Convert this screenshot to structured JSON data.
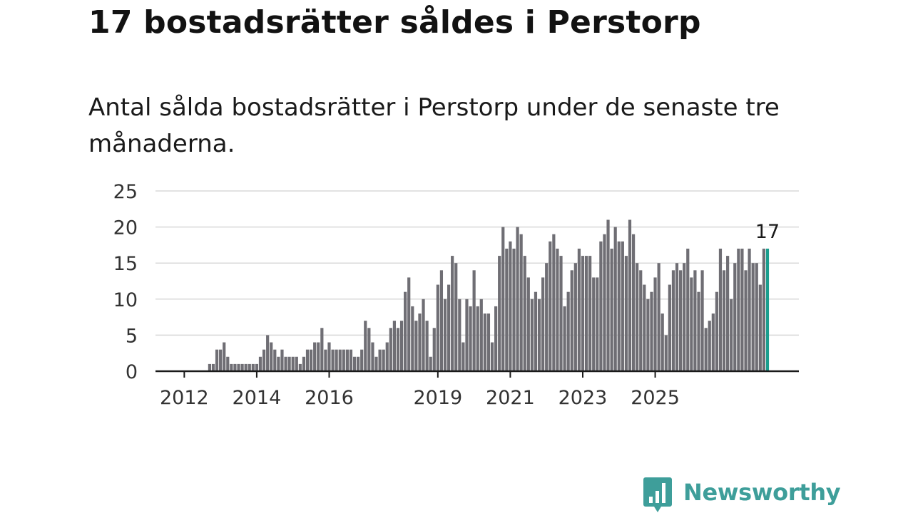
{
  "title": "17 bostadsrätter såldes i Perstorp",
  "subtitle": "Antal sålda bostadsrätter i Perstorp under de senaste tre månaderna.",
  "brand": {
    "name": "Newsworthy",
    "color": "#3e9e9a"
  },
  "colors": {
    "bar": "#6f6e74",
    "highlight": "#1b9e8e",
    "grid": "#d9d9d9",
    "axis": "#1a1a1a"
  },
  "chart_data": {
    "type": "bar",
    "title": "17 bostadsrätter såldes i Perstorp",
    "subtitle": "Antal sålda bostadsrätter i Perstorp under de senaste tre månaderna.",
    "xlabel": "",
    "ylabel": "",
    "ylim": [
      0,
      25
    ],
    "y_ticks": [
      0,
      5,
      10,
      15,
      20,
      25
    ],
    "x_ticks": [
      {
        "label": "2012",
        "index": 7
      },
      {
        "label": "2014",
        "index": 27
      },
      {
        "label": "2016",
        "index": 47
      },
      {
        "label": "2019",
        "index": 77
      },
      {
        "label": "2021",
        "index": 97
      },
      {
        "label": "2023",
        "index": 117
      },
      {
        "label": "2025",
        "index": 137
      }
    ],
    "grid": true,
    "start_period": "2011-06",
    "frequency": "monthly",
    "values": [
      0,
      0,
      0,
      0,
      0,
      0,
      0,
      0,
      0,
      0,
      0,
      0,
      0,
      0,
      1,
      1,
      3,
      3,
      4,
      2,
      1,
      1,
      1,
      1,
      1,
      1,
      1,
      1,
      2,
      3,
      5,
      4,
      3,
      2,
      3,
      2,
      2,
      2,
      2,
      1,
      2,
      3,
      3,
      4,
      4,
      6,
      3,
      4,
      3,
      3,
      3,
      3,
      3,
      3,
      2,
      2,
      3,
      7,
      6,
      4,
      2,
      3,
      3,
      4,
      6,
      7,
      6,
      7,
      11,
      13,
      9,
      7,
      8,
      10,
      7,
      2,
      6,
      12,
      14,
      10,
      12,
      16,
      15,
      10,
      4,
      10,
      9,
      14,
      9,
      10,
      8,
      8,
      4,
      9,
      16,
      20,
      17,
      18,
      17,
      20,
      19,
      16,
      13,
      10,
      11,
      10,
      13,
      15,
      18,
      19,
      17,
      16,
      9,
      11,
      14,
      15,
      17,
      16,
      16,
      16,
      13,
      13,
      18,
      19,
      21,
      17,
      20,
      18,
      18,
      16,
      21,
      19,
      15,
      14,
      12,
      10,
      11,
      13,
      15,
      8,
      5,
      12,
      14,
      15,
      14,
      15,
      17,
      13,
      14,
      11,
      14,
      6,
      7,
      8,
      11,
      17,
      14,
      16,
      10,
      15,
      17,
      17,
      14,
      17,
      15,
      15,
      12,
      17,
      17
    ],
    "highlight_last": true,
    "annotations": [
      {
        "text": "17",
        "target": "last"
      }
    ]
  }
}
